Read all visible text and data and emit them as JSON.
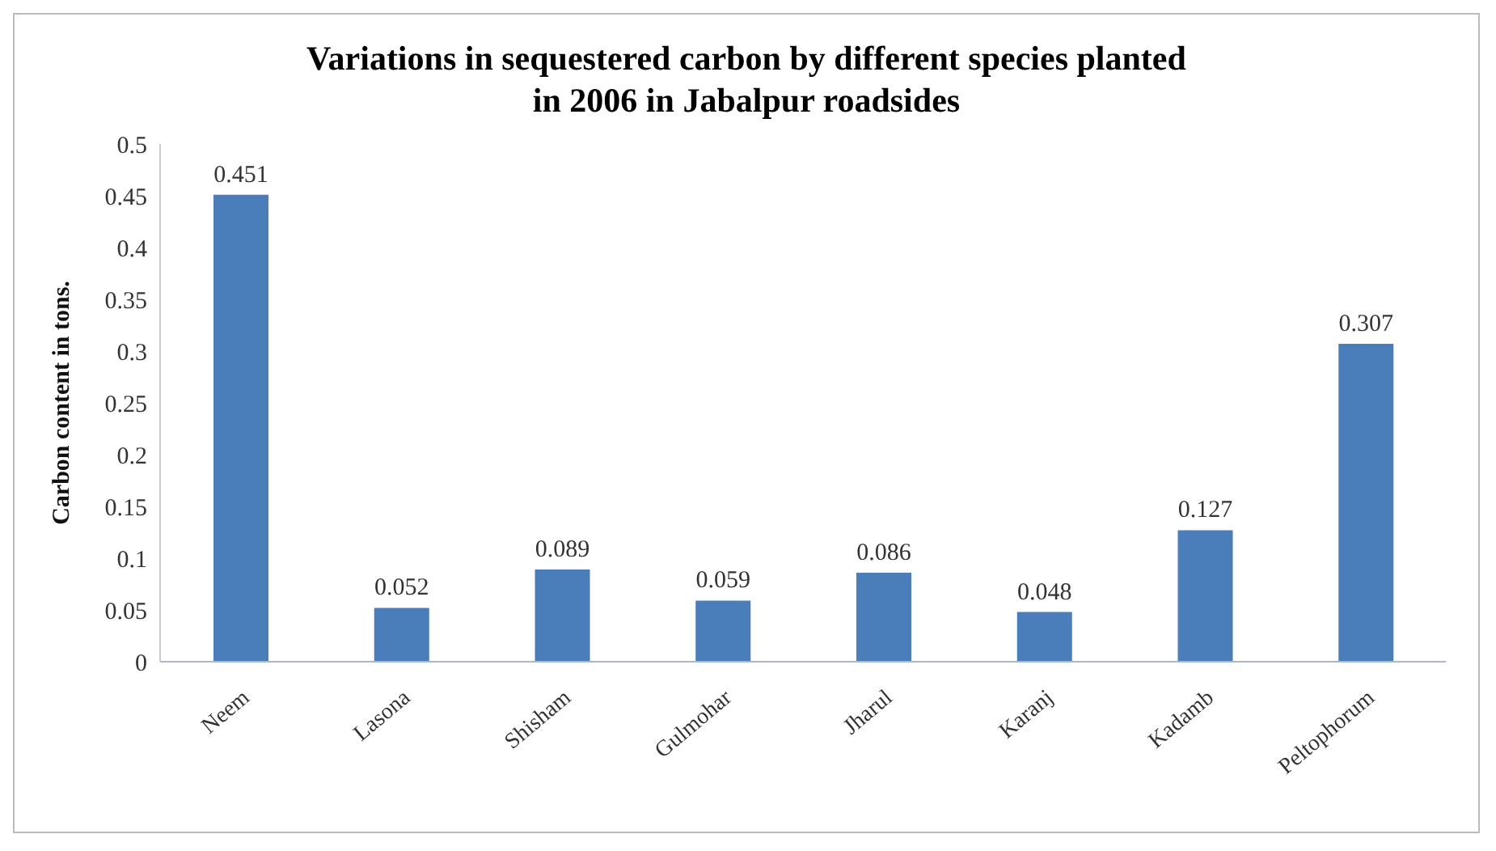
{
  "chart_data": {
    "type": "bar",
    "title": "Variations in sequestered carbon by different species planted in 2006 in Jabalpur roadsides",
    "ylabel": "Carbon content in tons.",
    "categories": [
      "Neem",
      "Lasona",
      "Shisham",
      "Gulmohar",
      "Jharul",
      "Karanj",
      "Kadamb",
      "Peltophorum"
    ],
    "values": [
      0.451,
      0.052,
      0.089,
      0.059,
      0.086,
      0.048,
      0.127,
      0.307
    ],
    "color": "#4a7ebb",
    "ylim": [
      0,
      0.5
    ],
    "yticks": [
      0,
      0.05,
      0.1,
      0.15,
      0.2,
      0.25,
      0.3,
      0.35,
      0.4,
      0.45,
      0.5
    ],
    "data_labels": true
  }
}
